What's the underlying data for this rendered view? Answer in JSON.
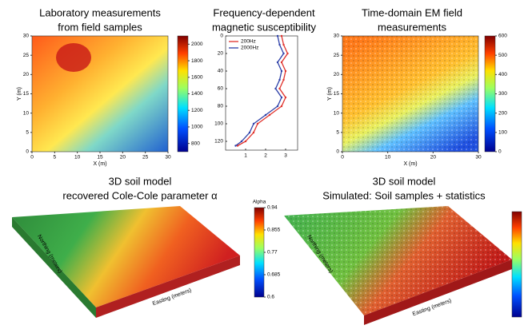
{
  "panels": [
    {
      "title": [
        "Laboratory measurements",
        "from field samples"
      ],
      "xlabel": "X (m)",
      "ylabel": "Y (m)",
      "xlim": [
        0,
        30
      ],
      "ylim": [
        0,
        30
      ],
      "xticks": [
        0,
        5,
        10,
        15,
        20,
        25,
        30
      ],
      "yticks": [
        0,
        5,
        10,
        15,
        20,
        25,
        30
      ],
      "colorbar_lim": [
        700,
        2100
      ],
      "colorbar_ticks": [
        800,
        1000,
        1200,
        1400,
        1600,
        1800,
        2000
      ]
    },
    {
      "title": [
        "Frequency-dependent",
        "magnetic susceptibility"
      ],
      "type": "line",
      "xlim": [
        0,
        3.6
      ],
      "ylim": [
        0,
        130
      ],
      "xticks": [
        1,
        2,
        3
      ],
      "yticks": [
        0,
        20,
        40,
        60,
        80,
        100,
        120
      ],
      "y": [
        0,
        10,
        20,
        30,
        40,
        50,
        60,
        70,
        80,
        90,
        100,
        110,
        120,
        125
      ],
      "series": [
        {
          "name": "200Hz",
          "color": "#e0302a",
          "values": [
            2.8,
            2.9,
            3.1,
            2.8,
            3.0,
            2.9,
            2.7,
            3.0,
            2.8,
            2.2,
            1.6,
            1.4,
            1.0,
            0.6
          ]
        },
        {
          "name": "2000Hz",
          "color": "#2c3fa8",
          "values": [
            2.6,
            2.7,
            2.9,
            2.6,
            2.8,
            2.7,
            2.5,
            2.8,
            2.6,
            2.0,
            1.4,
            1.2,
            0.8,
            0.5
          ]
        }
      ]
    },
    {
      "title": [
        "Time-domain EM field",
        "measurements"
      ],
      "xlabel": "X (m)",
      "ylabel": "Y (m)",
      "xlim": [
        0,
        30
      ],
      "ylim": [
        0,
        30
      ],
      "xticks": [
        0,
        10,
        20,
        30
      ],
      "yticks": [
        0,
        5,
        10,
        15,
        20,
        25,
        30
      ],
      "colorbar_lim": [
        0,
        600
      ],
      "colorbar_ticks": [
        0,
        100,
        200,
        300,
        400,
        500,
        600
      ]
    },
    {
      "title": [
        "3D soil model",
        "recovered Cole-Cole parameter α"
      ],
      "colorbar_title": "Alpha",
      "colorbar_lim": [
        0.6,
        0.94
      ],
      "colorbar_ticks": [
        0.6,
        0.685,
        0.77,
        0.855,
        0.94
      ],
      "xlabel": "Easting (meters)",
      "ylabel": "Northing (meters)"
    },
    {
      "title": [
        "3D soil model",
        "Simulated: Soil samples + statistics"
      ],
      "xlabel": "Easting (meters)",
      "ylabel": "Northing (meters)"
    }
  ]
}
